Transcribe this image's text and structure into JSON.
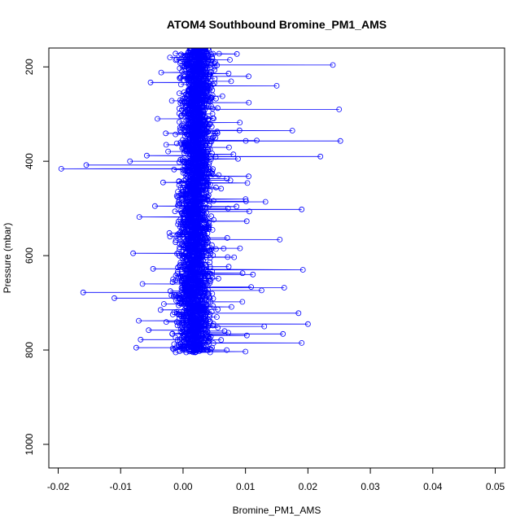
{
  "chart_data": {
    "type": "scatter",
    "title": "ATOM4 Southbound Bromine_PM1_AMS",
    "xlabel": "Bromine_PM1_AMS",
    "ylabel": "Pressure (mbar)",
    "xlim": [
      -0.0215,
      0.0515
    ],
    "ylim": [
      1050,
      160
    ],
    "y_reversed": true,
    "x_ticks": [
      -0.02,
      -0.01,
      0.0,
      0.01,
      0.02,
      0.03,
      0.04,
      0.05
    ],
    "x_tick_labels": [
      "-0.02",
      "-0.01",
      "0.00",
      "0.01",
      "0.02",
      "0.03",
      "0.04",
      "0.05"
    ],
    "y_ticks": [
      200,
      400,
      600,
      800,
      1000
    ],
    "y_tick_labels": [
      "200",
      "400",
      "600",
      "800",
      "1000"
    ],
    "marker": "open-circle",
    "connected": true,
    "grid": false,
    "color": "#0000ff",
    "series": [
      {
        "x": [
          0.0012,
          0.0048,
          -0.0021,
          0.0075,
          0.0003,
          0.024,
          0.0021,
          -0.0035,
          0.0105,
          0.0015,
          -0.0052,
          0.015,
          0.0009,
          0.0063,
          -0.0018,
          0.025,
          0.0027,
          -0.0041,
          0.0091,
          0.0006,
          0.0175,
          -0.0012,
          0.0052,
          0.0118,
          -0.0027,
          0.0033,
          0.0252,
          0.0014,
          -0.0058,
          0.0088,
          0.022,
          0.0025,
          -0.0195,
          -0.0155,
          -0.0085,
          0.0008,
          0.0105,
          -0.0032,
          0.0061,
          0.0019,
          0.0132,
          -0.0045,
          0.0072,
          0.019,
          0.0017,
          -0.007,
          0.0102,
          0.0036,
          -0.0022,
          0.0155,
          0.0011,
          0.0065,
          -0.008,
          0.0029,
          0.0192,
          0.0004,
          -0.0048,
          0.0112,
          0.0042,
          -0.0065,
          0.0162,
          0.0024,
          -0.016,
          -0.011,
          0.0095,
          0.0013,
          -0.0036,
          0.0185,
          0.0054,
          -0.0071,
          0.02,
          0.0031,
          0.013,
          -0.0055,
          0.016,
          0.0022,
          -0.0068,
          0.019,
          0.0034,
          -0.0075,
          0.007,
          0.001
        ],
        "y": [
          165,
          172,
          180,
          185,
          190,
          196,
          203,
          212,
          220,
          226,
          233,
          240,
          250,
          262,
          272,
          290,
          300,
          310,
          318,
          327,
          335,
          343,
          350,
          356,
          365,
          372,
          357,
          380,
          388,
          395,
          390,
          402,
          416,
          408,
          400,
          412,
          432,
          445,
          458,
          470,
          486,
          495,
          500,
          502,
          510,
          518,
          527,
          538,
          552,
          566,
          578,
          585,
          595,
          603,
          630,
          612,
          628,
          640,
          652,
          660,
          668,
          672,
          678,
          690,
          698,
          705,
          715,
          722,
          730,
          738,
          745,
          739,
          750,
          758,
          766,
          772,
          778,
          785,
          790,
          795,
          800,
          803
        ]
      }
    ]
  }
}
